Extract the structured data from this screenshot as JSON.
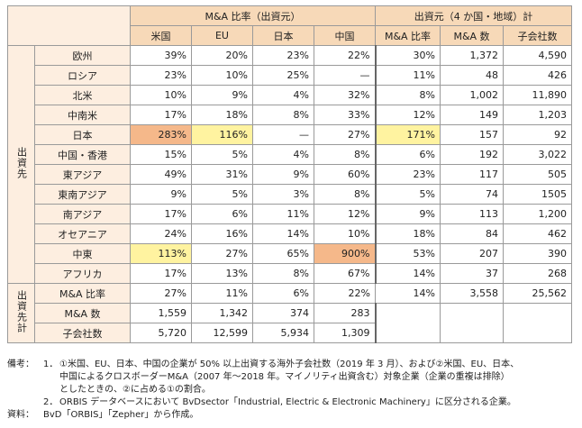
{
  "headers": {
    "group_left": "M&A 比率（出資元）",
    "group_right": "出資元（4 か国・地域）計",
    "cols": [
      "米国",
      "EU",
      "日本",
      "中国",
      "M&A 比率",
      "M&A 数",
      "子会社数"
    ]
  },
  "side_labels": {
    "destination": "出資先",
    "destination_total": "出資先計"
  },
  "rows": [
    {
      "label": "欧州",
      "cells": [
        "39%",
        "20%",
        "23%",
        "22%",
        "30%",
        "1,372",
        "4,590"
      ]
    },
    {
      "label": "ロシア",
      "cells": [
        "23%",
        "10%",
        "25%",
        "—",
        "11%",
        "48",
        "426"
      ]
    },
    {
      "label": "北米",
      "cells": [
        "10%",
        "9%",
        "4%",
        "32%",
        "8%",
        "1,002",
        "11,890"
      ]
    },
    {
      "label": "中南米",
      "cells": [
        "17%",
        "18%",
        "8%",
        "33%",
        "12%",
        "149",
        "1,203"
      ]
    },
    {
      "label": "日本",
      "cells": [
        "283%",
        "116%",
        "—",
        "27%",
        "171%",
        "157",
        "92"
      ]
    },
    {
      "label": "中国・香港",
      "cells": [
        "15%",
        "5%",
        "4%",
        "8%",
        "6%",
        "192",
        "3,022"
      ]
    },
    {
      "label": "東アジア",
      "cells": [
        "49%",
        "31%",
        "9%",
        "60%",
        "23%",
        "117",
        "505"
      ]
    },
    {
      "label": "東南アジア",
      "cells": [
        "9%",
        "5%",
        "3%",
        "8%",
        "5%",
        "74",
        "1505"
      ]
    },
    {
      "label": "南アジア",
      "cells": [
        "17%",
        "6%",
        "11%",
        "12%",
        "9%",
        "113",
        "1,200"
      ]
    },
    {
      "label": "オセアニア",
      "cells": [
        "24%",
        "16%",
        "14%",
        "10%",
        "18%",
        "84",
        "462"
      ]
    },
    {
      "label": "中東",
      "cells": [
        "113%",
        "27%",
        "65%",
        "900%",
        "53%",
        "207",
        "390"
      ]
    },
    {
      "label": "アフリカ",
      "cells": [
        "17%",
        "13%",
        "8%",
        "67%",
        "14%",
        "37",
        "268"
      ]
    }
  ],
  "total_rows": [
    {
      "label": "M&A 比率",
      "cells": [
        "27%",
        "11%",
        "6%",
        "22%",
        "14%",
        "3,558",
        "25,562"
      ]
    },
    {
      "label": "M&A 数",
      "cells": [
        "1,559",
        "1,342",
        "374",
        "283"
      ]
    },
    {
      "label": "子会社数",
      "cells": [
        "5,720",
        "12,599",
        "5,934",
        "1,309"
      ]
    }
  ],
  "highlight_colors": {
    "orange": "#f5b88a",
    "yellow": "#fff3a0"
  },
  "notes": {
    "lead": "備考：",
    "items": [
      {
        "num": "1．",
        "lines": [
          "①米国、EU、日本、中国の企業が 50% 以上出資する海外子会社数（2019 年 3 月）、および②米国、EU、日本、",
          "中国によるクロスボーダーM&A（2007 年～2018 年。マイノリティ出資含む）対象企業（企業の重複は排除）",
          "としたときの、②に占める①の割合。"
        ]
      },
      {
        "num": "2．",
        "lines": [
          "ORBIS データベースにおいて BvDsector「Industrial, Electric & Electronic Machinery」に区分される企業。"
        ]
      }
    ],
    "source_lead": "資料：",
    "source": "BvD「ORBIS」「Zepher」から作成。"
  }
}
